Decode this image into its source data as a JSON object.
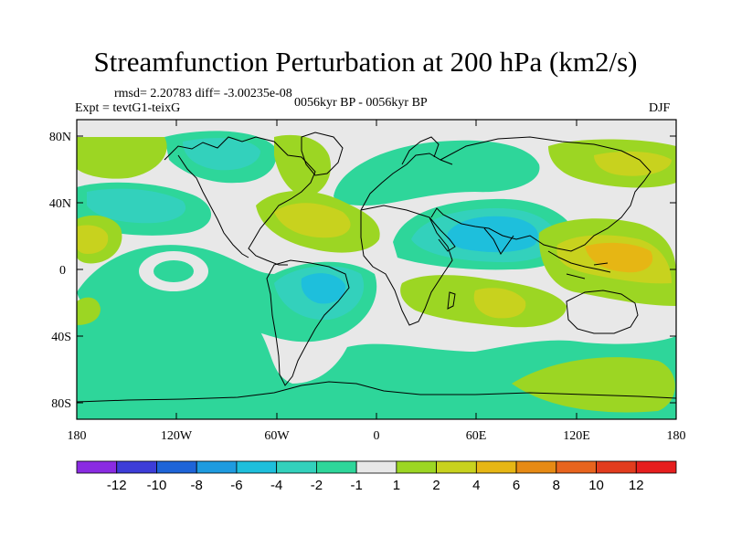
{
  "title": "Streamfunction Perturbation at 200 hPa (km2/s)",
  "stats": "rmsd= 2.20783  diff= -3.00235e-08",
  "experiment": "Expt = tevtG1-teixG",
  "period": "0056kyr BP - 0056kyr BP",
  "season": "DJF",
  "lat_labels": [
    "80N",
    "40N",
    "0",
    "40S",
    "80S"
  ],
  "lon_labels": [
    "180",
    "120W",
    "60W",
    "0",
    "60E",
    "120E",
    "180"
  ],
  "colorbar": {
    "colors": [
      "#8a2be2",
      "#3d3dd8",
      "#1e64d8",
      "#1e9be0",
      "#1ebfdc",
      "#33d1bc",
      "#2ed69a",
      "#e8e8e8",
      "#9cd623",
      "#c8d21e",
      "#e6b614",
      "#e68a14",
      "#e8641e",
      "#e23c1e",
      "#e61e1e"
    ],
    "labels": [
      "-12",
      "-10",
      "-8",
      "-6",
      "-4",
      "-2",
      "-1",
      "1",
      "2",
      "4",
      "6",
      "8",
      "10",
      "12"
    ]
  },
  "palette": {
    "neutral": "#e8e8e8",
    "neg1": "#2ed69a",
    "neg2": "#33d1bc",
    "neg3": "#1ebfdc",
    "pos1": "#9cd623",
    "pos2": "#c8d21e",
    "pos3": "#e6b614"
  }
}
